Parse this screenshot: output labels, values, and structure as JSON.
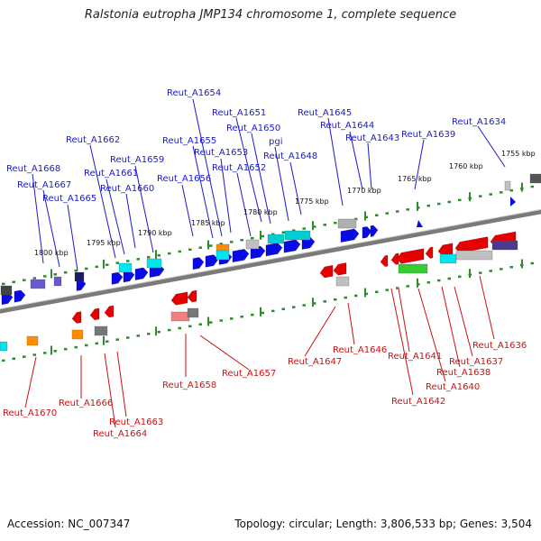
{
  "header": {
    "title": "Ralstonia eutropha JMP134 chromosome 1, complete sequence"
  },
  "footer": {
    "accession": "Accession: NC_007347",
    "summary": "Topology: circular; Length: 3,806,533 bp; Genes: 3,504"
  },
  "colors": {
    "forward_gene": "#0a0ae6",
    "reverse_gene": "#e60000",
    "top_label": "#1a1acc",
    "bottom_label": "#cc1111",
    "backbone": "#7a7a7a",
    "tick_dot": "#2e8b2e"
  },
  "scale_labels": [
    "1755 kbp",
    "1760 kbp",
    "1765 kbp",
    "1770 kbp",
    "1775 kbp",
    "1780 kbp",
    "1785 kbp",
    "1790 kbp",
    "1795 kbp",
    "1800 kbp"
  ],
  "top_labels": [
    "Reut_A1634",
    "Reut_A1639",
    "Reut_A1643",
    "Reut_A1644",
    "Reut_A1645",
    "Reut_A1648",
    "pgi",
    "Reut_A1650",
    "Reut_A1651",
    "Reut_A1652",
    "Reut_A1653",
    "Reut_A1654",
    "Reut_A1655",
    "Reut_A1656",
    "Reut_A1659",
    "Reut_A1660",
    "Reut_A1661",
    "Reut_A1662",
    "Reut_A1665",
    "Reut_A1667",
    "Reut_A1668"
  ],
  "bottom_labels": [
    "Reut_A1636",
    "Reut_A1637",
    "Reut_A1638",
    "Reut_A1640",
    "Reut_A1641",
    "Reut_A1642",
    "Reut_A1646",
    "Reut_A1647",
    "Reut_A1657",
    "Reut_A1658",
    "Reut_A1663",
    "Reut_A1664",
    "Reut_A1666",
    "Reut_A1670"
  ]
}
